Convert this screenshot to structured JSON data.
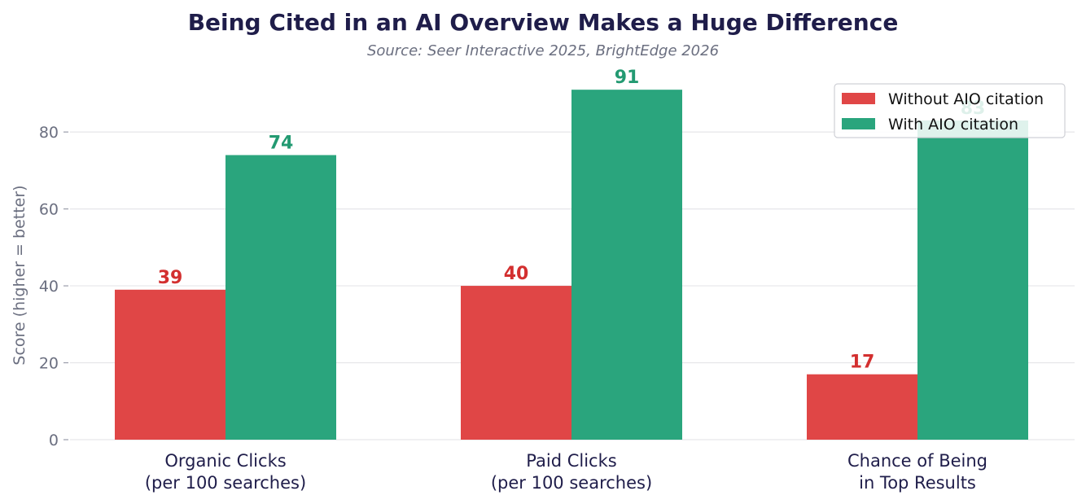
{
  "chart_data": {
    "type": "bar",
    "title": "Being Cited in an AI Overview Makes a Huge Difference",
    "subtitle": "Source: Seer Interactive 2025, BrightEdge 2026",
    "xlabel": "",
    "ylabel": "Score (higher = better)",
    "ylim": [
      0,
      94
    ],
    "yticks": [
      0,
      20,
      40,
      60,
      80
    ],
    "grid": true,
    "legend_position": "top-right",
    "categories": [
      [
        "Organic Clicks",
        "(per 100 searches)"
      ],
      [
        "Paid Clicks",
        "(per 100 searches)"
      ],
      [
        "Chance of Being",
        "in Top Results"
      ]
    ],
    "series": [
      {
        "name": "Without AIO citation",
        "color": "#e04646",
        "label_color": "#d32f2f",
        "values": [
          39,
          40,
          17
        ]
      },
      {
        "name": "With AIO citation",
        "color": "#2aa57d",
        "label_color": "#239a72",
        "values": [
          74,
          91,
          83
        ]
      }
    ]
  }
}
